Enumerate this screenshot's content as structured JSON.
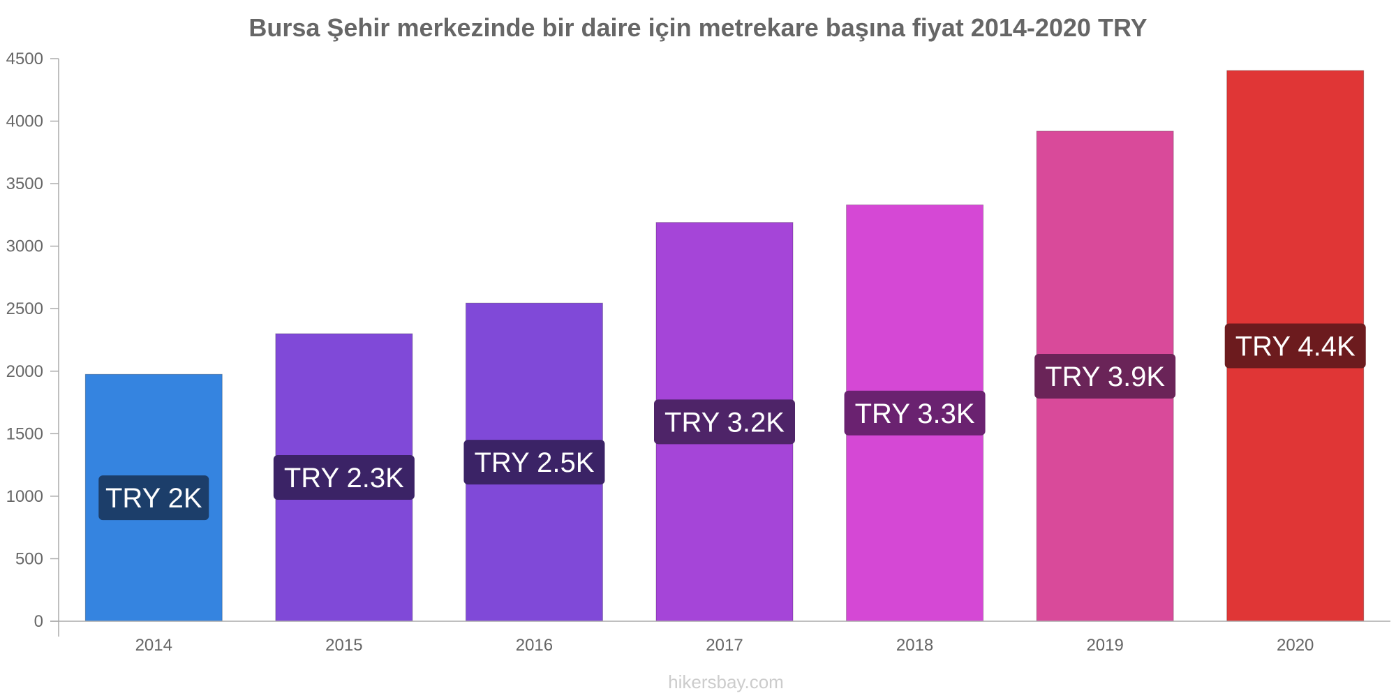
{
  "chart_data": {
    "type": "bar",
    "title": "Bursa Şehir merkezinde bir daire için metrekare başına fiyat 2014-2020 TRY",
    "xlabel": "",
    "ylabel": "",
    "categories": [
      "2014",
      "2015",
      "2016",
      "2017",
      "2018",
      "2019",
      "2020"
    ],
    "values": [
      1975,
      2300,
      2545,
      3190,
      3330,
      3920,
      4405
    ],
    "data_labels": [
      "TRY 2K",
      "TRY 2.3K",
      "TRY 2.5K",
      "TRY 3.2K",
      "TRY 3.3K",
      "TRY 3.9K",
      "TRY 4.4K"
    ],
    "ylim": [
      0,
      4500
    ],
    "yticks": [
      0,
      500,
      1000,
      1500,
      2000,
      2500,
      3000,
      3500,
      4000,
      4500
    ],
    "grid": false,
    "legend": "none",
    "bar_colors": [
      "#3584e0",
      "#8049d8",
      "#8049d8",
      "#a545d8",
      "#d548d5",
      "#d94a9a",
      "#e03636"
    ],
    "label_colors": [
      "#1c3e6a",
      "#3b2366",
      "#3b2366",
      "#4e2468",
      "#6a2270",
      "#6a2458",
      "#6c1b1e"
    ]
  },
  "watermark": "hikersbay.com"
}
